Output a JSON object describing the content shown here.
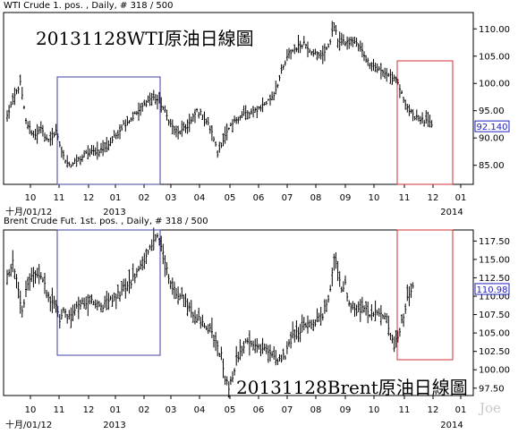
{
  "panels": [
    {
      "header": "WTI Crude 1. pos. , Daily, # 318 / 500",
      "title": "20131128WTI原油日線圖",
      "y_ticks": [
        "110.00",
        "105.00",
        "100.00",
        "95.00",
        "90.00",
        "85.00"
      ],
      "last_value": "92.140",
      "x_months": [
        "10",
        "11",
        "12",
        "01",
        "02",
        "03",
        "04",
        "05",
        "06",
        "07",
        "08",
        "09",
        "10",
        "11",
        "12",
        "01"
      ],
      "x_sub_left": "",
      "x_year_mid": "2013",
      "x_year_right": "2014"
    },
    {
      "header": "Brent Crude Fut. 1st. pos. , Daily, # 318 / 500",
      "title": "20131128Brent原油日線圖",
      "y_ticks": [
        "117.50",
        "115.00",
        "112.50",
        "110.00",
        "107.50",
        "105.00",
        "102.50",
        "100.00",
        "97.50"
      ],
      "last_value": "110.98",
      "x_months": [
        "10",
        "11",
        "12",
        "01",
        "02",
        "03",
        "04",
        "05",
        "06",
        "07",
        "08",
        "09",
        "10",
        "11",
        "12",
        "01"
      ],
      "x_sub_left": "十月/01/12",
      "x_year_mid": "2013",
      "x_year_right": "2014"
    }
  ],
  "top_sub_left": "十月/01/12",
  "watermark": "Joe",
  "colors": {
    "background": "#ffffff",
    "bars": "#000000",
    "blue_box": "#4040a0",
    "red_box": "#d03030",
    "last_value_text": "#2020c0",
    "watermark": "#c8c8c8"
  },
  "chart_data": [
    {
      "type": "ohlc",
      "title": "20131128WTI原油日線圖",
      "x_range": [
        "2012-10-01",
        "2014-01-01"
      ],
      "ylim": [
        81.5,
        113
      ],
      "last": 92.14,
      "anchors": [
        [
          0,
          94
        ],
        [
          3,
          97
        ],
        [
          7,
          100
        ],
        [
          10,
          93
        ],
        [
          14,
          90.5
        ],
        [
          18,
          91.5
        ],
        [
          22,
          89.5
        ],
        [
          26,
          91
        ],
        [
          30,
          86.5
        ],
        [
          34,
          85
        ],
        [
          38,
          86
        ],
        [
          42,
          87
        ],
        [
          46,
          87.5
        ],
        [
          52,
          88
        ],
        [
          58,
          90.5
        ],
        [
          62,
          92.5
        ],
        [
          66,
          93.5
        ],
        [
          70,
          95
        ],
        [
          74,
          96.5
        ],
        [
          77,
          97.5
        ],
        [
          80,
          97
        ],
        [
          83,
          95.5
        ],
        [
          87,
          92.5
        ],
        [
          91,
          90.8
        ],
        [
          95,
          91.8
        ],
        [
          98,
          93
        ],
        [
          101,
          95
        ],
        [
          104,
          94.2
        ],
        [
          107,
          92.5
        ],
        [
          110,
          90
        ],
        [
          112,
          87
        ],
        [
          114,
          89
        ],
        [
          118,
          91.5
        ],
        [
          122,
          93.5
        ],
        [
          126,
          94.5
        ],
        [
          130,
          94.5
        ],
        [
          134,
          95.5
        ],
        [
          138,
          96.5
        ],
        [
          142,
          98
        ],
        [
          146,
          102
        ],
        [
          150,
          105.5
        ],
        [
          154,
          106.5
        ],
        [
          158,
          107.5
        ],
        [
          162,
          106
        ],
        [
          166,
          105
        ],
        [
          170,
          106
        ],
        [
          172,
          108
        ],
        [
          174,
          110.5
        ],
        [
          176,
          108
        ],
        [
          178,
          107.5
        ],
        [
          182,
          107.5
        ],
        [
          184,
          108
        ],
        [
          188,
          106.5
        ],
        [
          192,
          104
        ],
        [
          196,
          103
        ],
        [
          200,
          102
        ],
        [
          204,
          101.5
        ],
        [
          208,
          100
        ],
        [
          210,
          98
        ],
        [
          212,
          96.5
        ],
        [
          214,
          95
        ],
        [
          216,
          94
        ],
        [
          218,
          94
        ],
        [
          220,
          93.5
        ],
        [
          222,
          93
        ],
        [
          224,
          92.8
        ],
        [
          226,
          92.1
        ]
      ]
    },
    {
      "type": "ohlc",
      "title": "20131128Brent原油日線圖",
      "x_range": [
        "2012-10-01",
        "2014-01-01"
      ],
      "ylim": [
        96.5,
        119
      ],
      "last": 110.98,
      "anchors": [
        [
          0,
          113
        ],
        [
          3,
          114.5
        ],
        [
          6,
          111
        ],
        [
          8,
          108
        ],
        [
          10,
          110.5
        ],
        [
          14,
          113.5
        ],
        [
          18,
          113
        ],
        [
          22,
          110
        ],
        [
          26,
          108.5
        ],
        [
          28,
          107
        ],
        [
          30,
          108.2
        ],
        [
          32,
          106.8
        ],
        [
          36,
          108.5
        ],
        [
          40,
          109
        ],
        [
          46,
          109.5
        ],
        [
          50,
          108.5
        ],
        [
          54,
          109.5
        ],
        [
          58,
          110
        ],
        [
          62,
          111
        ],
        [
          66,
          112
        ],
        [
          70,
          113.5
        ],
        [
          74,
          115.5
        ],
        [
          77,
          117
        ],
        [
          80,
          118
        ],
        [
          82,
          117
        ],
        [
          84,
          115
        ],
        [
          86,
          112
        ],
        [
          90,
          110.5
        ],
        [
          94,
          109.5
        ],
        [
          96,
          108.5
        ],
        [
          100,
          107.5
        ],
        [
          104,
          106.5
        ],
        [
          108,
          105.5
        ],
        [
          112,
          103
        ],
        [
          114,
          102
        ],
        [
          116,
          99
        ],
        [
          118,
          97.8
        ],
        [
          120,
          99
        ],
        [
          122,
          101.5
        ],
        [
          126,
          103.5
        ],
        [
          130,
          103.5
        ],
        [
          134,
          103.2
        ],
        [
          138,
          103
        ],
        [
          140,
          102.5
        ],
        [
          144,
          101.2
        ],
        [
          148,
          102
        ],
        [
          152,
          104.5
        ],
        [
          156,
          105.5
        ],
        [
          160,
          106
        ],
        [
          164,
          106.5
        ],
        [
          168,
          107.5
        ],
        [
          172,
          110.5
        ],
        [
          174,
          115
        ],
        [
          176,
          113
        ],
        [
          178,
          111
        ],
        [
          180,
          111.5
        ],
        [
          182,
          109
        ],
        [
          186,
          108
        ],
        [
          190,
          108.5
        ],
        [
          194,
          107.5
        ],
        [
          198,
          108
        ],
        [
          200,
          107.5
        ],
        [
          202,
          106.8
        ],
        [
          204,
          105
        ],
        [
          206,
          103
        ],
        [
          208,
          104.5
        ],
        [
          210,
          106.5
        ],
        [
          212,
          108.5
        ],
        [
          214,
          110.5
        ],
        [
          216,
          111
        ]
      ]
    }
  ]
}
